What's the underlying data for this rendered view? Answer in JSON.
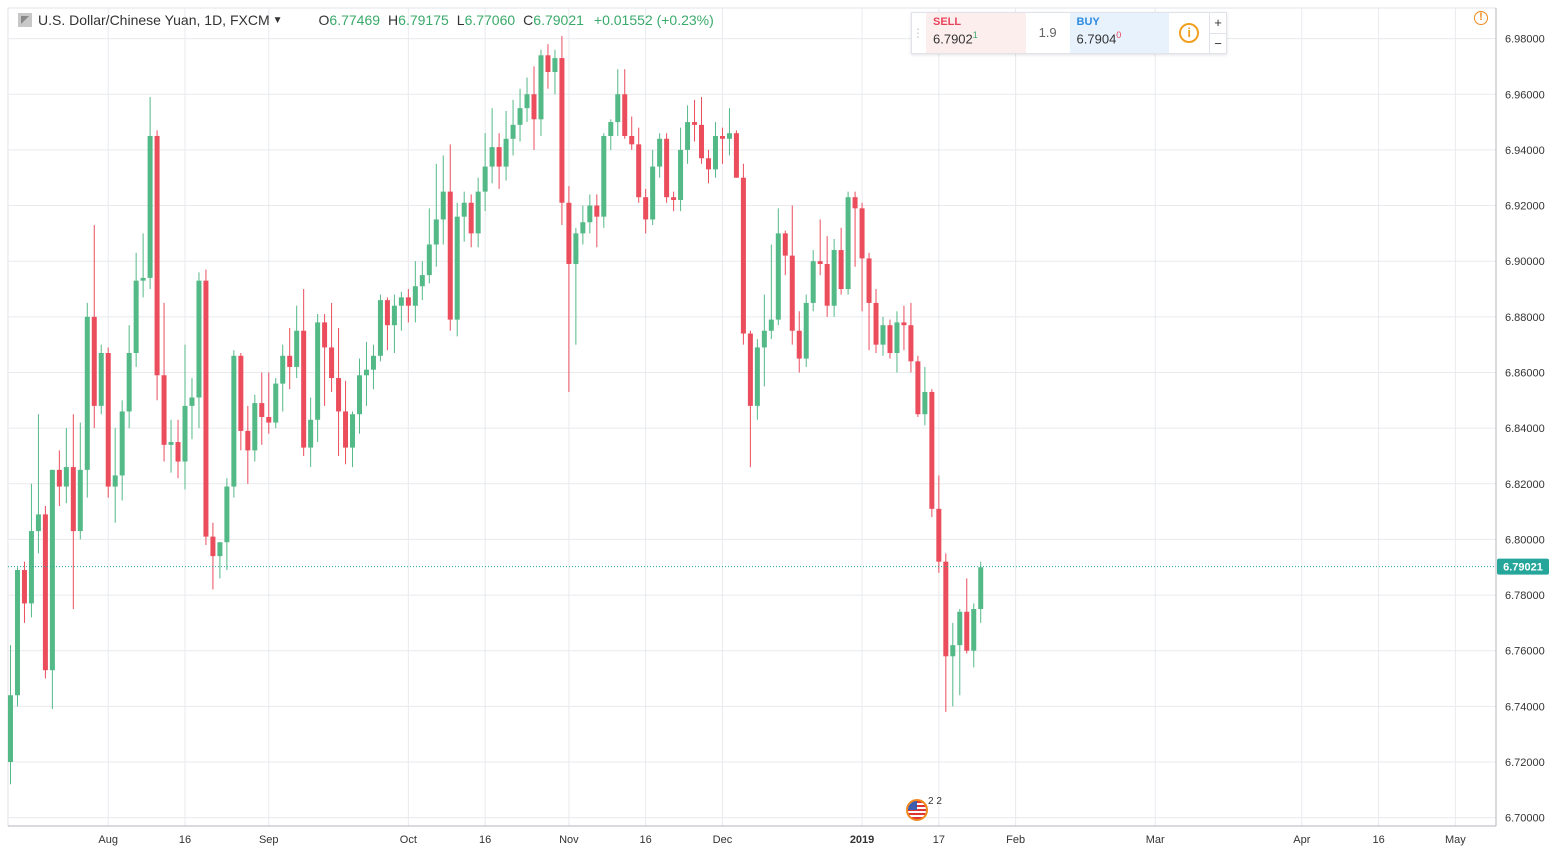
{
  "legend": {
    "title": "U.S. Dollar/Chinese Yuan, 1D, FXCM",
    "o_label": "O",
    "o_value": "6.77469",
    "h_label": "H",
    "h_value": "6.79175",
    "l_label": "L",
    "l_value": "6.77060",
    "c_label": "C",
    "c_value": "6.79021",
    "change": "+0.01552 (+0.23%)"
  },
  "trade_panel": {
    "sell_label": "SELL",
    "sell_price": "6.7902",
    "sell_sup": "1",
    "spread": "1.9",
    "buy_label": "BUY",
    "buy_price": "6.7904",
    "buy_sup": "0",
    "plus": "+",
    "minus": "−"
  },
  "event_marker": {
    "count": "2 2"
  },
  "colors": {
    "up": "#53b987",
    "down": "#eb4d5c",
    "grid": "#e8eaee",
    "last_line": "#26a69a",
    "last_label_bg": "#26a69a"
  },
  "chart_data": {
    "type": "candlestick",
    "title": "U.S. Dollar/Chinese Yuan, 1D, FXCM",
    "last_price": "6.79021",
    "y_ticks": [
      6.7,
      6.72,
      6.74,
      6.76,
      6.78,
      6.8,
      6.82,
      6.84,
      6.86,
      6.88,
      6.9,
      6.92,
      6.94,
      6.96,
      6.98
    ],
    "y_tick_labels": [
      "6.70000",
      "6.72000",
      "6.74000",
      "6.76000",
      "6.78000",
      "6.80000",
      "6.82000",
      "6.84000",
      "6.86000",
      "6.88000",
      "6.90000",
      "6.92000",
      "6.94000",
      "6.96000",
      "6.98000"
    ],
    "ylim": [
      6.697,
      6.991
    ],
    "x_ticks": [
      {
        "index": 14,
        "label": "Aug"
      },
      {
        "index": 25,
        "label": "16"
      },
      {
        "index": 37,
        "label": "Sep"
      },
      {
        "index": 57,
        "label": "Oct"
      },
      {
        "index": 68,
        "label": "16"
      },
      {
        "index": 80,
        "label": "Nov"
      },
      {
        "index": 91,
        "label": "16"
      },
      {
        "index": 102,
        "label": "Dec"
      },
      {
        "index": 122,
        "label": "2019"
      },
      {
        "index": 133,
        "label": "17"
      },
      {
        "index": 144,
        "label": "Feb"
      },
      {
        "index": 164,
        "label": "Mar"
      },
      {
        "index": 185,
        "label": "Apr"
      },
      {
        "index": 196,
        "label": "16"
      },
      {
        "index": 207,
        "label": "May"
      }
    ],
    "candles": [
      {
        "o": 6.72,
        "h": 6.762,
        "l": 6.712,
        "c": 6.744
      },
      {
        "o": 6.744,
        "h": 6.79,
        "l": 6.74,
        "c": 6.789
      },
      {
        "o": 6.789,
        "h": 6.792,
        "l": 6.77,
        "c": 6.777
      },
      {
        "o": 6.777,
        "h": 6.82,
        "l": 6.772,
        "c": 6.803
      },
      {
        "o": 6.803,
        "h": 6.845,
        "l": 6.795,
        "c": 6.809
      },
      {
        "o": 6.809,
        "h": 6.812,
        "l": 6.75,
        "c": 6.753
      },
      {
        "o": 6.753,
        "h": 6.825,
        "l": 6.739,
        "c": 6.825
      },
      {
        "o": 6.825,
        "h": 6.832,
        "l": 6.812,
        "c": 6.819
      },
      {
        "o": 6.819,
        "h": 6.84,
        "l": 6.813,
        "c": 6.826
      },
      {
        "o": 6.826,
        "h": 6.845,
        "l": 6.775,
        "c": 6.803
      },
      {
        "o": 6.803,
        "h": 6.842,
        "l": 6.8,
        "c": 6.825
      },
      {
        "o": 6.825,
        "h": 6.885,
        "l": 6.815,
        "c": 6.88
      },
      {
        "o": 6.88,
        "h": 6.913,
        "l": 6.84,
        "c": 6.848
      },
      {
        "o": 6.848,
        "h": 6.87,
        "l": 6.845,
        "c": 6.867
      },
      {
        "o": 6.867,
        "h": 6.869,
        "l": 6.815,
        "c": 6.819
      },
      {
        "o": 6.819,
        "h": 6.84,
        "l": 6.806,
        "c": 6.823
      },
      {
        "o": 6.823,
        "h": 6.85,
        "l": 6.814,
        "c": 6.846
      },
      {
        "o": 6.846,
        "h": 6.877,
        "l": 6.84,
        "c": 6.867
      },
      {
        "o": 6.867,
        "h": 6.903,
        "l": 6.862,
        "c": 6.893
      },
      {
        "o": 6.893,
        "h": 6.91,
        "l": 6.887,
        "c": 6.894
      },
      {
        "o": 6.894,
        "h": 6.959,
        "l": 6.89,
        "c": 6.945
      },
      {
        "o": 6.945,
        "h": 6.947,
        "l": 6.85,
        "c": 6.859
      },
      {
        "o": 6.859,
        "h": 6.885,
        "l": 6.828,
        "c": 6.834
      },
      {
        "o": 6.834,
        "h": 6.843,
        "l": 6.824,
        "c": 6.835
      },
      {
        "o": 6.835,
        "h": 6.843,
        "l": 6.822,
        "c": 6.828
      },
      {
        "o": 6.828,
        "h": 6.87,
        "l": 6.818,
        "c": 6.848
      },
      {
        "o": 6.848,
        "h": 6.858,
        "l": 6.836,
        "c": 6.851
      },
      {
        "o": 6.851,
        "h": 6.896,
        "l": 6.84,
        "c": 6.893
      },
      {
        "o": 6.893,
        "h": 6.897,
        "l": 6.798,
        "c": 6.801
      },
      {
        "o": 6.801,
        "h": 6.806,
        "l": 6.782,
        "c": 6.794
      },
      {
        "o": 6.794,
        "h": 6.797,
        "l": 6.786,
        "c": 6.799
      },
      {
        "o": 6.799,
        "h": 6.822,
        "l": 6.789,
        "c": 6.819
      },
      {
        "o": 6.819,
        "h": 6.868,
        "l": 6.815,
        "c": 6.866
      },
      {
        "o": 6.866,
        "h": 6.867,
        "l": 6.832,
        "c": 6.839
      },
      {
        "o": 6.839,
        "h": 6.848,
        "l": 6.82,
        "c": 6.832
      },
      {
        "o": 6.832,
        "h": 6.852,
        "l": 6.828,
        "c": 6.849
      },
      {
        "o": 6.849,
        "h": 6.86,
        "l": 6.834,
        "c": 6.844
      },
      {
        "o": 6.844,
        "h": 6.86,
        "l": 6.838,
        "c": 6.842
      },
      {
        "o": 6.842,
        "h": 6.858,
        "l": 6.84,
        "c": 6.856
      },
      {
        "o": 6.856,
        "h": 6.87,
        "l": 6.846,
        "c": 6.866
      },
      {
        "o": 6.866,
        "h": 6.876,
        "l": 6.854,
        "c": 6.862
      },
      {
        "o": 6.862,
        "h": 6.884,
        "l": 6.858,
        "c": 6.875
      },
      {
        "o": 6.875,
        "h": 6.89,
        "l": 6.83,
        "c": 6.833
      },
      {
        "o": 6.833,
        "h": 6.851,
        "l": 6.826,
        "c": 6.843
      },
      {
        "o": 6.843,
        "h": 6.881,
        "l": 6.835,
        "c": 6.878
      },
      {
        "o": 6.878,
        "h": 6.881,
        "l": 6.848,
        "c": 6.869
      },
      {
        "o": 6.869,
        "h": 6.885,
        "l": 6.853,
        "c": 6.858
      },
      {
        "o": 6.858,
        "h": 6.876,
        "l": 6.83,
        "c": 6.846
      },
      {
        "o": 6.846,
        "h": 6.857,
        "l": 6.827,
        "c": 6.833
      },
      {
        "o": 6.833,
        "h": 6.846,
        "l": 6.826,
        "c": 6.845
      },
      {
        "o": 6.845,
        "h": 6.865,
        "l": 6.838,
        "c": 6.859
      },
      {
        "o": 6.859,
        "h": 6.871,
        "l": 6.848,
        "c": 6.861
      },
      {
        "o": 6.861,
        "h": 6.87,
        "l": 6.854,
        "c": 6.866
      },
      {
        "o": 6.866,
        "h": 6.888,
        "l": 6.864,
        "c": 6.886
      },
      {
        "o": 6.886,
        "h": 6.887,
        "l": 6.868,
        "c": 6.877
      },
      {
        "o": 6.877,
        "h": 6.888,
        "l": 6.867,
        "c": 6.884
      },
      {
        "o": 6.884,
        "h": 6.889,
        "l": 6.875,
        "c": 6.887
      },
      {
        "o": 6.887,
        "h": 6.89,
        "l": 6.878,
        "c": 6.884
      },
      {
        "o": 6.884,
        "h": 6.9,
        "l": 6.878,
        "c": 6.891
      },
      {
        "o": 6.891,
        "h": 6.9,
        "l": 6.886,
        "c": 6.895
      },
      {
        "o": 6.895,
        "h": 6.919,
        "l": 6.892,
        "c": 6.906
      },
      {
        "o": 6.906,
        "h": 6.935,
        "l": 6.898,
        "c": 6.915
      },
      {
        "o": 6.915,
        "h": 6.938,
        "l": 6.906,
        "c": 6.925
      },
      {
        "o": 6.925,
        "h": 6.942,
        "l": 6.875,
        "c": 6.879
      },
      {
        "o": 6.879,
        "h": 6.921,
        "l": 6.873,
        "c": 6.916
      },
      {
        "o": 6.916,
        "h": 6.925,
        "l": 6.907,
        "c": 6.921
      },
      {
        "o": 6.921,
        "h": 6.924,
        "l": 6.905,
        "c": 6.91
      },
      {
        "o": 6.91,
        "h": 6.93,
        "l": 6.905,
        "c": 6.925
      },
      {
        "o": 6.925,
        "h": 6.946,
        "l": 6.918,
        "c": 6.934
      },
      {
        "o": 6.934,
        "h": 6.955,
        "l": 6.928,
        "c": 6.941
      },
      {
        "o": 6.941,
        "h": 6.946,
        "l": 6.926,
        "c": 6.934
      },
      {
        "o": 6.934,
        "h": 6.954,
        "l": 6.929,
        "c": 6.944
      },
      {
        "o": 6.944,
        "h": 6.958,
        "l": 6.938,
        "c": 6.949
      },
      {
        "o": 6.949,
        "h": 6.962,
        "l": 6.943,
        "c": 6.955
      },
      {
        "o": 6.955,
        "h": 6.966,
        "l": 6.95,
        "c": 6.96
      },
      {
        "o": 6.96,
        "h": 6.97,
        "l": 6.94,
        "c": 6.951
      },
      {
        "o": 6.951,
        "h": 6.976,
        "l": 6.945,
        "c": 6.974
      },
      {
        "o": 6.974,
        "h": 6.978,
        "l": 6.962,
        "c": 6.968
      },
      {
        "o": 6.968,
        "h": 6.976,
        "l": 6.96,
        "c": 6.973
      },
      {
        "o": 6.973,
        "h": 6.981,
        "l": 6.913,
        "c": 6.921
      },
      {
        "o": 6.921,
        "h": 6.927,
        "l": 6.853,
        "c": 6.899
      },
      {
        "o": 6.899,
        "h": 6.912,
        "l": 6.87,
        "c": 6.91
      },
      {
        "o": 6.91,
        "h": 6.92,
        "l": 6.906,
        "c": 6.914
      },
      {
        "o": 6.914,
        "h": 6.924,
        "l": 6.91,
        "c": 6.92
      },
      {
        "o": 6.92,
        "h": 6.924,
        "l": 6.905,
        "c": 6.916
      },
      {
        "o": 6.916,
        "h": 6.946,
        "l": 6.912,
        "c": 6.945
      },
      {
        "o": 6.945,
        "h": 6.951,
        "l": 6.94,
        "c": 6.95
      },
      {
        "o": 6.95,
        "h": 6.969,
        "l": 6.945,
        "c": 6.96
      },
      {
        "o": 6.96,
        "h": 6.969,
        "l": 6.944,
        "c": 6.945
      },
      {
        "o": 6.945,
        "h": 6.952,
        "l": 6.94,
        "c": 6.942
      },
      {
        "o": 6.942,
        "h": 6.948,
        "l": 6.921,
        "c": 6.923
      },
      {
        "o": 6.923,
        "h": 6.926,
        "l": 6.91,
        "c": 6.915
      },
      {
        "o": 6.915,
        "h": 6.94,
        "l": 6.913,
        "c": 6.934
      },
      {
        "o": 6.934,
        "h": 6.946,
        "l": 6.93,
        "c": 6.944
      },
      {
        "o": 6.944,
        "h": 6.946,
        "l": 6.921,
        "c": 6.923
      },
      {
        "o": 6.923,
        "h": 6.925,
        "l": 6.918,
        "c": 6.922
      },
      {
        "o": 6.922,
        "h": 6.948,
        "l": 6.918,
        "c": 6.94
      },
      {
        "o": 6.94,
        "h": 6.956,
        "l": 6.935,
        "c": 6.95
      },
      {
        "o": 6.95,
        "h": 6.958,
        "l": 6.943,
        "c": 6.949
      },
      {
        "o": 6.949,
        "h": 6.959,
        "l": 6.935,
        "c": 6.937
      },
      {
        "o": 6.937,
        "h": 6.94,
        "l": 6.928,
        "c": 6.933
      },
      {
        "o": 6.933,
        "h": 6.95,
        "l": 6.93,
        "c": 6.945
      },
      {
        "o": 6.945,
        "h": 6.948,
        "l": 6.935,
        "c": 6.944
      },
      {
        "o": 6.944,
        "h": 6.955,
        "l": 6.938,
        "c": 6.946
      },
      {
        "o": 6.946,
        "h": 6.947,
        "l": 6.93,
        "c": 6.93
      },
      {
        "o": 6.93,
        "h": 6.935,
        "l": 6.87,
        "c": 6.874
      },
      {
        "o": 6.874,
        "h": 6.875,
        "l": 6.826,
        "c": 6.848
      },
      {
        "o": 6.848,
        "h": 6.872,
        "l": 6.843,
        "c": 6.869
      },
      {
        "o": 6.869,
        "h": 6.888,
        "l": 6.855,
        "c": 6.875
      },
      {
        "o": 6.875,
        "h": 6.906,
        "l": 6.872,
        "c": 6.879
      },
      {
        "o": 6.879,
        "h": 6.919,
        "l": 6.877,
        "c": 6.91
      },
      {
        "o": 6.91,
        "h": 6.911,
        "l": 6.895,
        "c": 6.902
      },
      {
        "o": 6.902,
        "h": 6.92,
        "l": 6.87,
        "c": 6.875
      },
      {
        "o": 6.875,
        "h": 6.882,
        "l": 6.86,
        "c": 6.865
      },
      {
        "o": 6.865,
        "h": 6.888,
        "l": 6.862,
        "c": 6.885
      },
      {
        "o": 6.885,
        "h": 6.904,
        "l": 6.882,
        "c": 6.9
      },
      {
        "o": 6.9,
        "h": 6.915,
        "l": 6.895,
        "c": 6.899
      },
      {
        "o": 6.899,
        "h": 6.909,
        "l": 6.88,
        "c": 6.884
      },
      {
        "o": 6.884,
        "h": 6.908,
        "l": 6.88,
        "c": 6.904
      },
      {
        "o": 6.904,
        "h": 6.912,
        "l": 6.888,
        "c": 6.89
      },
      {
        "o": 6.89,
        "h": 6.925,
        "l": 6.888,
        "c": 6.923
      },
      {
        "o": 6.923,
        "h": 6.925,
        "l": 6.898,
        "c": 6.919
      },
      {
        "o": 6.919,
        "h": 6.921,
        "l": 6.882,
        "c": 6.901
      },
      {
        "o": 6.901,
        "h": 6.903,
        "l": 6.868,
        "c": 6.885
      },
      {
        "o": 6.885,
        "h": 6.89,
        "l": 6.867,
        "c": 6.87
      },
      {
        "o": 6.87,
        "h": 6.88,
        "l": 6.866,
        "c": 6.877
      },
      {
        "o": 6.877,
        "h": 6.879,
        "l": 6.865,
        "c": 6.867
      },
      {
        "o": 6.867,
        "h": 6.882,
        "l": 6.86,
        "c": 6.878
      },
      {
        "o": 6.878,
        "h": 6.884,
        "l": 6.868,
        "c": 6.877
      },
      {
        "o": 6.877,
        "h": 6.885,
        "l": 6.86,
        "c": 6.864
      },
      {
        "o": 6.864,
        "h": 6.866,
        "l": 6.844,
        "c": 6.845
      },
      {
        "o": 6.845,
        "h": 6.862,
        "l": 6.841,
        "c": 6.853
      },
      {
        "o": 6.853,
        "h": 6.854,
        "l": 6.808,
        "c": 6.811
      },
      {
        "o": 6.811,
        "h": 6.823,
        "l": 6.788,
        "c": 6.792
      },
      {
        "o": 6.792,
        "h": 6.795,
        "l": 6.738,
        "c": 6.758
      },
      {
        "o": 6.758,
        "h": 6.77,
        "l": 6.74,
        "c": 6.762
      },
      {
        "o": 6.762,
        "h": 6.775,
        "l": 6.744,
        "c": 6.774
      },
      {
        "o": 6.774,
        "h": 6.786,
        "l": 6.759,
        "c": 6.76
      },
      {
        "o": 6.76,
        "h": 6.777,
        "l": 6.754,
        "c": 6.775
      },
      {
        "o": 6.775,
        "h": 6.792,
        "l": 6.77,
        "c": 6.79
      }
    ]
  }
}
